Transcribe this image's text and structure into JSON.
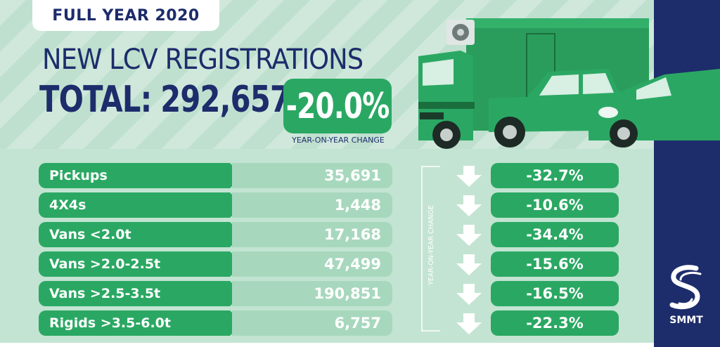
{
  "badge": "FULL YEAR 2020",
  "headline": "NEW LCV REGISTRATIONS",
  "total": {
    "label": "TOTAL:",
    "value": "292,657"
  },
  "change": {
    "value": "-20.0%",
    "caption": "YEAR-ON-YEAR CHANGE"
  },
  "side_caption": "YEAR-ON-YEAR CHANGE",
  "rows": [
    {
      "label": "Pickups",
      "value": "35,691",
      "change": "-32.7%"
    },
    {
      "label": "4X4s",
      "value": "1,448",
      "change": "-10.6%"
    },
    {
      "label": "Vans <2.0t",
      "value": "17,168",
      "change": "-34.4%"
    },
    {
      "label": "Vans >2.0-2.5t",
      "value": "47,499",
      "change": "-15.6%"
    },
    {
      "label": "Vans >2.5-3.5t",
      "value": "190,851",
      "change": "-16.5%"
    },
    {
      "label": "Rigids >3.5-6.0t",
      "value": "6,757",
      "change": "-22.3%"
    }
  ],
  "logo": {
    "text": "SMMT"
  },
  "colors": {
    "navy": "#1d2c6b",
    "green": "#2aa863",
    "pale_green": "#a7d8bd",
    "background": "#c3e4d2"
  },
  "icons": {
    "row_arrow": "down-arrow-icon",
    "vehicles": "truck-pickup-van-illustration",
    "logo": "smmt-logo-icon"
  }
}
